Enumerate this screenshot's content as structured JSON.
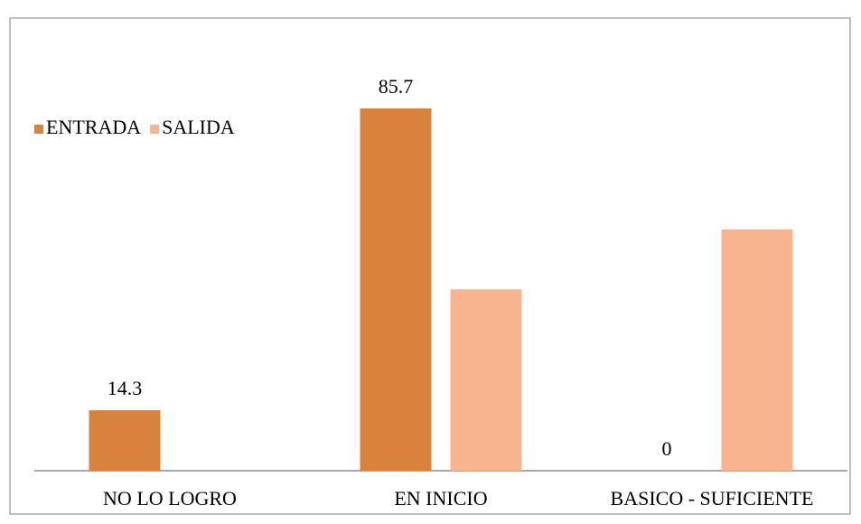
{
  "chart_data": {
    "type": "bar",
    "categories": [
      "NO LO LOGRO",
      "EN INICIO",
      "BASICO - SUFICIENTE"
    ],
    "series": [
      {
        "name": "ENTRADA",
        "color": "#d9823b",
        "values": [
          14.3,
          85.7,
          0
        ],
        "show_labels": true
      },
      {
        "name": "SALIDA",
        "color": "#f8b48f",
        "values": [
          0,
          42.9,
          57.1
        ],
        "show_labels": false
      }
    ],
    "legend": "top-left",
    "grid": false
  }
}
